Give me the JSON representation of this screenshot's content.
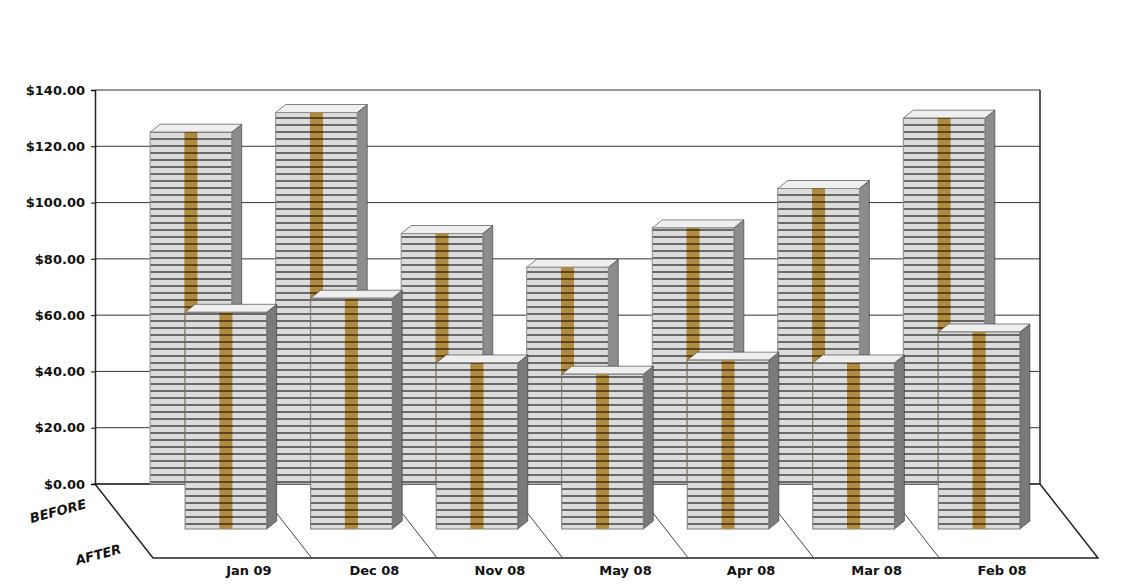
{
  "chart_data": {
    "type": "bar",
    "categories": [
      "Jan 09",
      "Dec 08",
      "Nov 08",
      "May 08",
      "Apr 08",
      "Mar 08",
      "Feb 08"
    ],
    "series": [
      {
        "name": "BEFORE",
        "color": "#8c8c8c",
        "values": [
          125,
          132,
          89,
          77,
          91,
          105,
          130
        ]
      },
      {
        "name": "AFTER",
        "color": "#7a7a7a",
        "values": [
          77,
          82,
          59,
          55,
          60,
          59,
          70
        ]
      }
    ],
    "ylim": [
      0,
      140
    ],
    "yticks": [
      {
        "value": 0,
        "label": "$0.00"
      },
      {
        "value": 20,
        "label": "$20.00"
      },
      {
        "value": 40,
        "label": "$40.00"
      },
      {
        "value": 60,
        "label": "$60.00"
      },
      {
        "value": 80,
        "label": "$80.00"
      },
      {
        "value": 100,
        "label": "$100.00"
      },
      {
        "value": 120,
        "label": "$120.00"
      },
      {
        "value": 140,
        "label": "$140.00"
      }
    ],
    "grid": true
  }
}
